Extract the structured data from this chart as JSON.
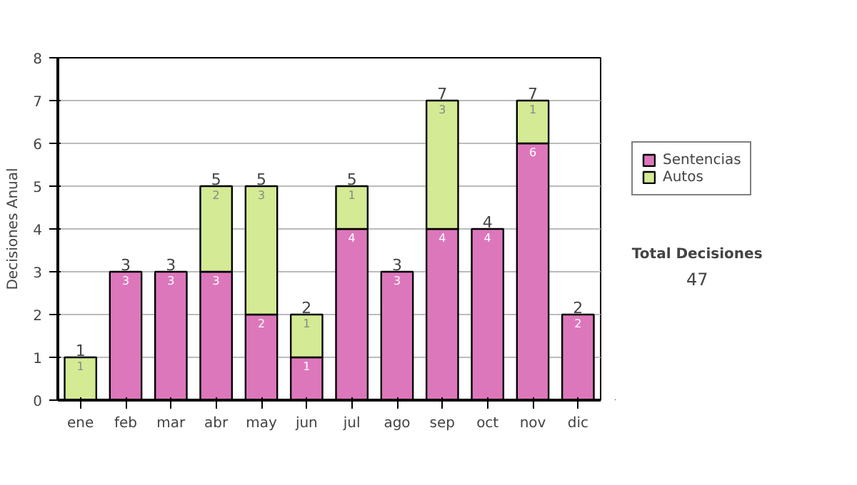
{
  "chart_data": {
    "type": "bar",
    "stacked": true,
    "ylabel": "Decisiones Anual",
    "categories": [
      "ene",
      "feb",
      "mar",
      "abr",
      "may",
      "jun",
      "jul",
      "ago",
      "sep",
      "oct",
      "nov",
      "dic"
    ],
    "series": [
      {
        "name": "Sentencias",
        "color": "#dd77bb",
        "values": [
          0,
          3,
          3,
          3,
          2,
          1,
          4,
          3,
          4,
          4,
          6,
          2
        ],
        "value_labels": [
          null,
          "3",
          "3",
          "3",
          "2",
          "1",
          "4",
          "3",
          "4",
          "4",
          "6",
          "2"
        ]
      },
      {
        "name": "Autos",
        "color": "#d4ea94",
        "values": [
          1,
          0,
          0,
          2,
          3,
          1,
          1,
          0,
          3,
          0,
          1,
          0
        ],
        "value_labels": [
          "1",
          null,
          null,
          "2",
          "3",
          "1",
          "1",
          null,
          "3",
          null,
          "1",
          null
        ]
      }
    ],
    "totals": [
      "1",
      "3",
      "3",
      "5",
      "5",
      "2",
      "5",
      "3",
      "7",
      "4",
      "7",
      "2"
    ],
    "ylim": [
      0,
      8
    ],
    "yticks": [
      0,
      1,
      2,
      3,
      4,
      5,
      6,
      7,
      8
    ],
    "grid": "y",
    "legend": "right",
    "annotations": [
      "Total Decisiones",
      "47"
    ]
  }
}
